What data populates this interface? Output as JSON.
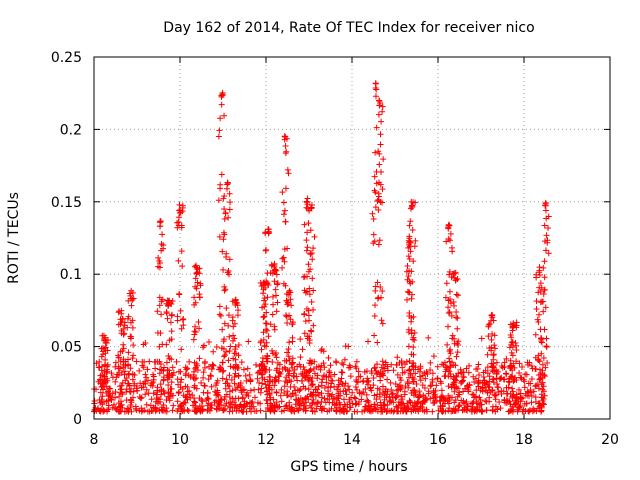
{
  "chart_data": {
    "type": "scatter",
    "title": "Day 162 of 2014, Rate Of TEC Index for receiver nico",
    "xlabel": "GPS time / hours",
    "ylabel": "ROTI / TECUs",
    "xlim": [
      8,
      20
    ],
    "ylim": [
      0,
      0.25
    ],
    "xticks": [
      8,
      10,
      12,
      14,
      16,
      18,
      20
    ],
    "xtick_labels": [
      "8",
      "10",
      "12",
      "14",
      "16",
      "18",
      "20"
    ],
    "yticks": [
      0,
      0.05,
      0.1,
      0.15,
      0.2,
      0.25
    ],
    "ytick_labels": [
      "0",
      "0.05",
      "0.1",
      "0.15",
      "0.2",
      "0.25"
    ],
    "grid": true,
    "marker": "+",
    "color": "#ff0000",
    "x_data_range": [
      8.0,
      18.5
    ],
    "baseline_band": [
      0.005,
      0.04
    ],
    "spikes": [
      {
        "x": 8.25,
        "peak": 0.058
      },
      {
        "x": 8.65,
        "peak": 0.075
      },
      {
        "x": 8.85,
        "peak": 0.089
      },
      {
        "x": 9.55,
        "peak": 0.138
      },
      {
        "x": 9.75,
        "peak": 0.085
      },
      {
        "x": 10.0,
        "peak": 0.148
      },
      {
        "x": 10.4,
        "peak": 0.106
      },
      {
        "x": 10.98,
        "peak": 0.227
      },
      {
        "x": 11.1,
        "peak": 0.165
      },
      {
        "x": 11.3,
        "peak": 0.083
      },
      {
        "x": 11.95,
        "peak": 0.095
      },
      {
        "x": 12.05,
        "peak": 0.132
      },
      {
        "x": 12.2,
        "peak": 0.108
      },
      {
        "x": 12.45,
        "peak": 0.198
      },
      {
        "x": 12.55,
        "peak": 0.09
      },
      {
        "x": 12.95,
        "peak": 0.153
      },
      {
        "x": 13.05,
        "peak": 0.148
      },
      {
        "x": 14.55,
        "peak": 0.232
      },
      {
        "x": 14.65,
        "peak": 0.222
      },
      {
        "x": 15.4,
        "peak": 0.15
      },
      {
        "x": 15.35,
        "peak": 0.127
      },
      {
        "x": 16.25,
        "peak": 0.135
      },
      {
        "x": 16.4,
        "peak": 0.101
      },
      {
        "x": 17.25,
        "peak": 0.072
      },
      {
        "x": 17.75,
        "peak": 0.067
      },
      {
        "x": 18.35,
        "peak": 0.105
      },
      {
        "x": 18.5,
        "peak": 0.15
      }
    ]
  }
}
